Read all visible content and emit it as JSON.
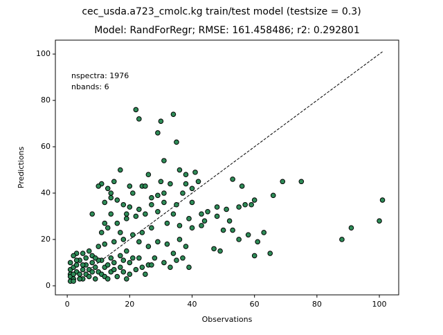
{
  "chart_data": {
    "type": "scatter",
    "title": "cec_usda.a723_cmolc.kg train/test model (testsize = 0.3)",
    "subtitle": "Model: RandForRegr; RMSE: 161.458486; r2: 0.292801",
    "annotations": [
      "nspectra: 1976",
      "nbands: 6"
    ],
    "xlabel": "Observations",
    "ylabel": "Predictions",
    "color": "#2e8b57",
    "edgecolor": "#000000",
    "x": [
      22,
      23,
      30,
      34,
      29,
      35,
      17,
      31,
      36,
      30,
      38,
      41,
      42,
      53,
      56,
      69,
      75,
      26,
      24,
      11,
      10,
      13,
      15,
      20,
      21,
      25,
      33,
      38,
      40,
      37,
      31,
      27,
      29,
      14,
      12,
      14,
      16,
      18,
      20,
      23,
      27,
      31,
      35,
      40,
      43,
      45,
      48,
      51,
      55,
      57,
      60,
      59,
      66,
      48,
      52,
      44,
      39,
      34,
      29,
      25,
      22,
      19,
      14,
      12,
      16,
      19,
      8,
      11,
      13,
      17,
      21,
      24,
      27,
      32,
      36,
      40,
      43,
      50,
      53,
      58,
      61,
      63,
      65,
      60,
      47,
      49,
      55,
      36,
      38,
      34,
      32,
      29,
      26,
      23,
      18,
      15,
      12,
      10,
      7,
      5,
      3,
      2,
      8,
      11,
      14,
      17,
      20,
      24,
      26,
      28,
      31,
      33,
      35,
      37,
      39,
      88,
      91,
      100,
      101,
      1,
      1,
      1,
      1,
      2,
      2,
      3,
      3,
      4,
      4,
      5,
      5,
      6,
      6,
      7,
      7,
      8,
      8,
      9,
      9,
      10,
      10,
      11,
      12,
      12,
      13,
      14,
      15,
      16,
      17,
      18,
      19,
      20,
      21,
      22,
      3,
      4,
      6,
      2,
      5,
      9,
      1,
      2,
      13,
      15,
      18,
      19,
      23,
      25,
      27
    ],
    "values": [
      76,
      72,
      71,
      74,
      66,
      62,
      50,
      54,
      50,
      45,
      48,
      49,
      45,
      46,
      43,
      45,
      45,
      48,
      43,
      44,
      43,
      42,
      45,
      43,
      40,
      43,
      44,
      44,
      42,
      40,
      40,
      38,
      39,
      40,
      36,
      38,
      37,
      35,
      34,
      33,
      35,
      36,
      35,
      36,
      31,
      32,
      34,
      33,
      34,
      35,
      37,
      35,
      39,
      30,
      28,
      28,
      29,
      31,
      32,
      31,
      30,
      31,
      31,
      27,
      27,
      29,
      31,
      23,
      25,
      23,
      22,
      23,
      25,
      27,
      26,
      25,
      26,
      24,
      24,
      22,
      19,
      23,
      14,
      13,
      16,
      15,
      20,
      20,
      17,
      14,
      18,
      19,
      17,
      19,
      20,
      19,
      18,
      17,
      15,
      14,
      14,
      13,
      13,
      11,
      12,
      13,
      10,
      8,
      9,
      12,
      10,
      8,
      11,
      12,
      8,
      20,
      25,
      28,
      37,
      10,
      7,
      5,
      4,
      8,
      3,
      6,
      9,
      5,
      11,
      7,
      3,
      9,
      5,
      7,
      4,
      10,
      6,
      8,
      3,
      11,
      6,
      5,
      8,
      4,
      9,
      6,
      10,
      4,
      8,
      6,
      3,
      5,
      12,
      7,
      11,
      3,
      12,
      5,
      9,
      12,
      2,
      2,
      3,
      7,
      11,
      15,
      12,
      5,
      9
    ],
    "reference_line": {
      "x": [
        1,
        101
      ],
      "y": [
        1,
        101
      ],
      "color": "#000000",
      "dashed": true
    },
    "xlim": [
      -3.8,
      106.2
    ],
    "ylim": [
      -3.9,
      106
    ],
    "xticks": [
      0,
      20,
      40,
      60,
      80,
      100
    ],
    "yticks": [
      0,
      20,
      40,
      60,
      80,
      100
    ],
    "grid": false
  }
}
